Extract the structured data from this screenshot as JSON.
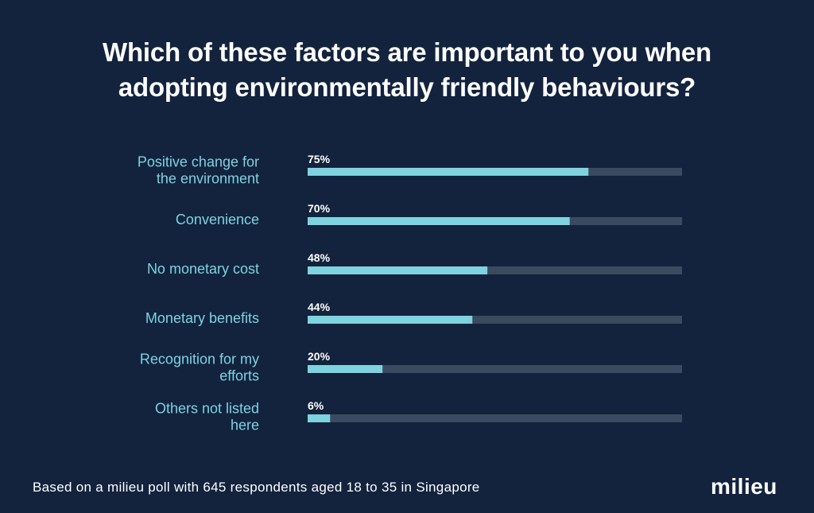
{
  "title_line1": "Which of these factors are important to you when",
  "title_line2": "adopting environmentally friendly behaviours?",
  "footnote": "Based on a milieu poll with 645 respondents aged 18 to 35 in Singapore",
  "logo": "milieu",
  "colors": {
    "background": "#13233d",
    "bar_fill": "#7ed3df",
    "bar_track": "#3a4a60",
    "label_text": "#7ed3df",
    "value_text": "#ffffff"
  },
  "chart_data": {
    "type": "bar",
    "orientation": "horizontal",
    "title": "Which of these factors are important to you when adopting environmentally friendly behaviours?",
    "categories": [
      [
        "Positive change for",
        "the environment"
      ],
      [
        "Convenience"
      ],
      [
        "No monetary cost"
      ],
      [
        "Monetary benefits"
      ],
      [
        "Recognition for my",
        "efforts"
      ],
      [
        "Others not listed",
        "here"
      ]
    ],
    "values": [
      75,
      70,
      48,
      44,
      20,
      6
    ],
    "value_labels": [
      "75%",
      "70%",
      "48%",
      "44%",
      "20%",
      "6%"
    ],
    "xlim": [
      0,
      100
    ],
    "unit": "%",
    "grid": false,
    "legend": "none"
  }
}
